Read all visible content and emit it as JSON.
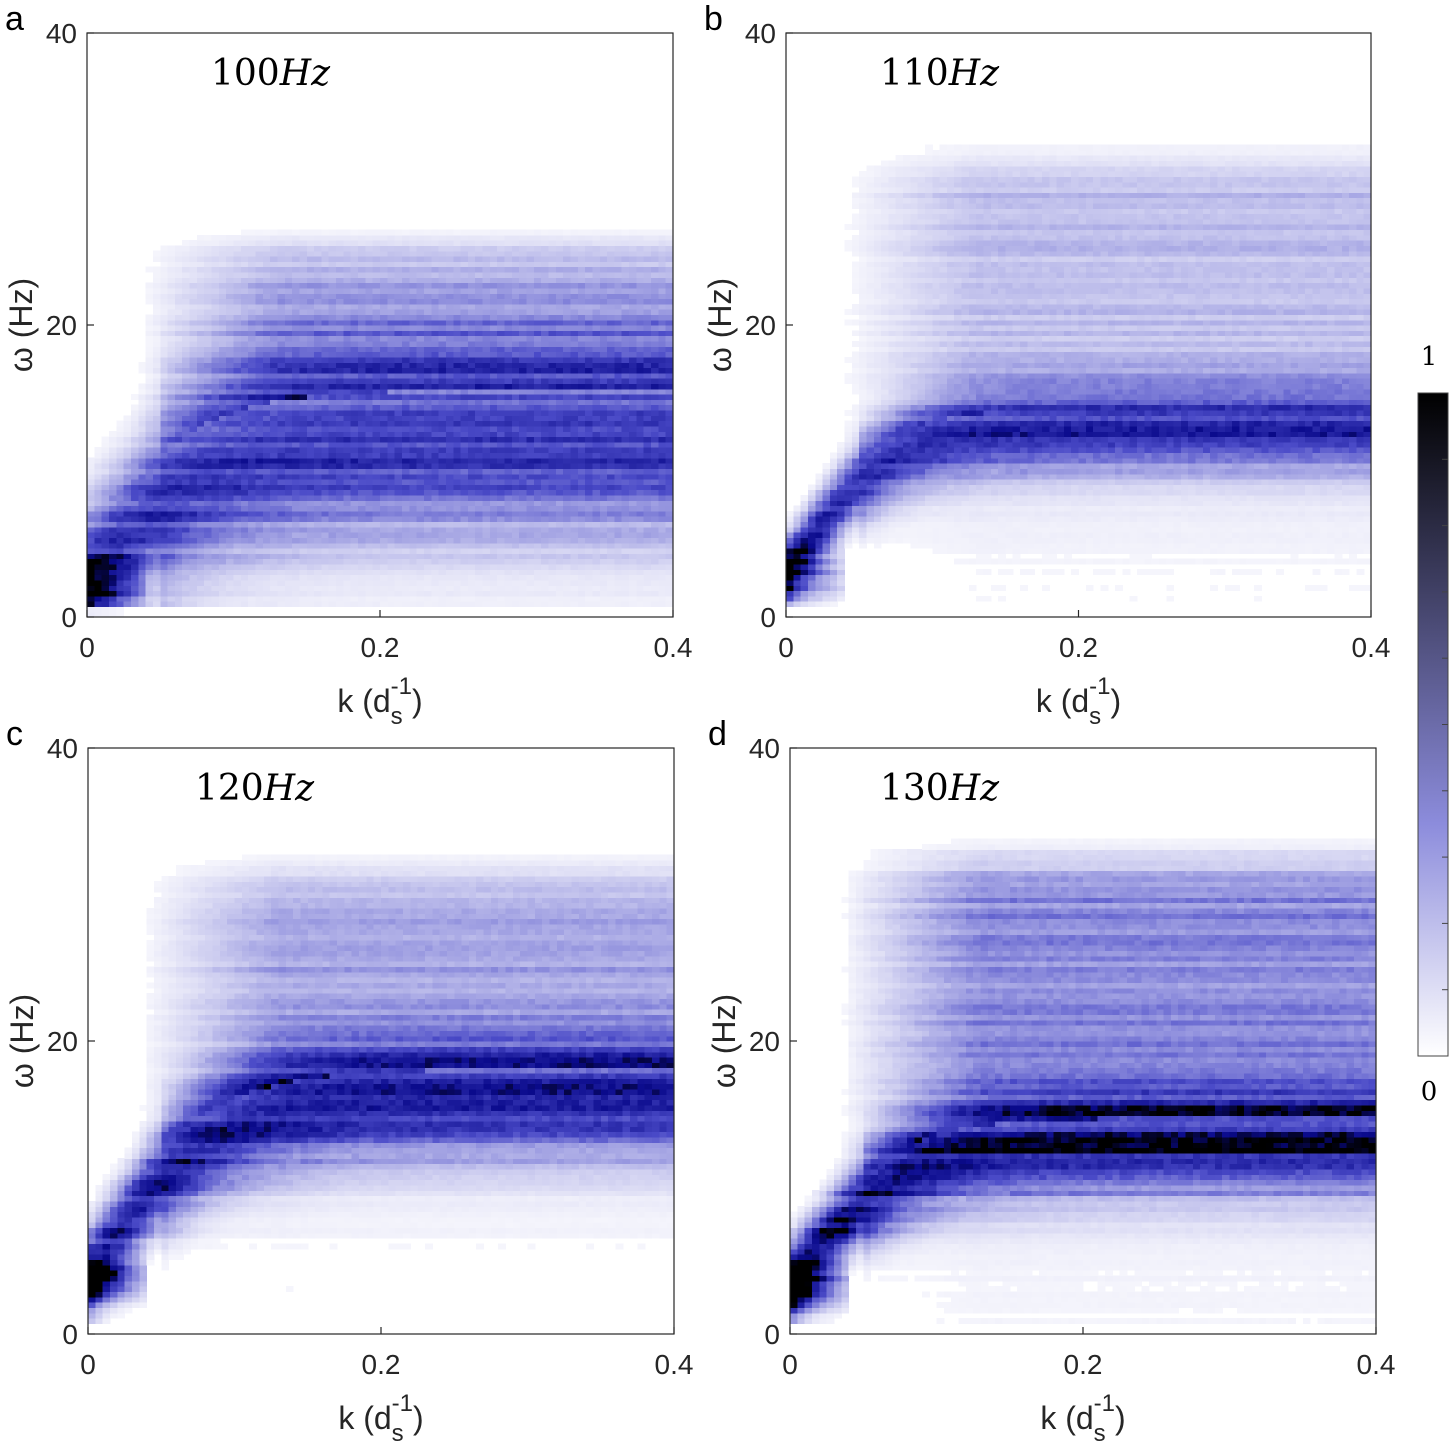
{
  "chart_data": [
    {
      "type": "heatmap",
      "panel": "a",
      "title": "100Hz",
      "xlabel": "k (d_s^-1)",
      "ylabel": "ω (Hz)",
      "xlim": [
        0,
        0.4
      ],
      "ylim": [
        0,
        40
      ],
      "xticks": [
        "0",
        "0.2",
        "0.4"
      ],
      "yticks": [
        "0",
        "20",
        "40"
      ],
      "features": {
        "low_k_peak_omega": 2.5,
        "saturation_omega": 12,
        "saturation_k": 0.1,
        "band_width": 6,
        "upper_level": 0.55,
        "upper_top": 27,
        "intensity_scale": 0.75
      }
    },
    {
      "type": "heatmap",
      "panel": "b",
      "title": "110Hz",
      "xlabel": "k (d_s^-1)",
      "ylabel": "ω (Hz)",
      "xlim": [
        0,
        0.4
      ],
      "ylim": [
        0,
        40
      ],
      "xticks": [
        "0",
        "0.2",
        "0.4"
      ],
      "yticks": [
        "0",
        "20",
        "40"
      ],
      "features": {
        "low_k_peak_omega": 3,
        "saturation_omega": 12.8,
        "saturation_k": 0.08,
        "band_width": 2.6,
        "upper_level": 0.35,
        "upper_top": 33,
        "intensity_scale": 0.8
      }
    },
    {
      "type": "heatmap",
      "panel": "c",
      "title": "120Hz",
      "xlabel": "k (d_s^-1)",
      "ylabel": "ω (Hz)",
      "xlim": [
        0,
        0.4
      ],
      "ylim": [
        0,
        40
      ],
      "xticks": [
        "0",
        "0.2",
        "0.4"
      ],
      "yticks": [
        "0",
        "20",
        "40"
      ],
      "features": {
        "low_k_peak_omega": 4,
        "saturation_omega": 16,
        "saturation_k": 0.1,
        "band_width": 3.5,
        "upper_level": 0.5,
        "upper_top": 33,
        "intensity_scale": 0.85
      }
    },
    {
      "type": "heatmap",
      "panel": "d",
      "title": "130Hz",
      "xlabel": "k (d_s^-1)",
      "ylabel": "ω (Hz)",
      "xlim": [
        0,
        0.4
      ],
      "ylim": [
        0,
        40
      ],
      "xticks": [
        "0",
        "0.2",
        "0.4"
      ],
      "yticks": [
        "0",
        "20",
        "40"
      ],
      "features": {
        "low_k_peak_omega": 3.5,
        "saturation_omega": 13,
        "saturation_k": 0.09,
        "band_width": 3,
        "upper_level": 0.5,
        "upper_top": 34,
        "intensity_scale": 1.0
      }
    }
  ],
  "colorbar": {
    "max_label": "1",
    "min_label": "0",
    "range": [
      0,
      1
    ],
    "colors": [
      "#ffffff",
      "#4b4bc8",
      "#0a0a8c",
      "#000000"
    ]
  },
  "axis_text": {
    "xlabel_main": "k (d",
    "xlabel_sub": "s",
    "xlabel_sup": "-1",
    "xlabel_close": ")",
    "ylabel": "ω (Hz)"
  }
}
